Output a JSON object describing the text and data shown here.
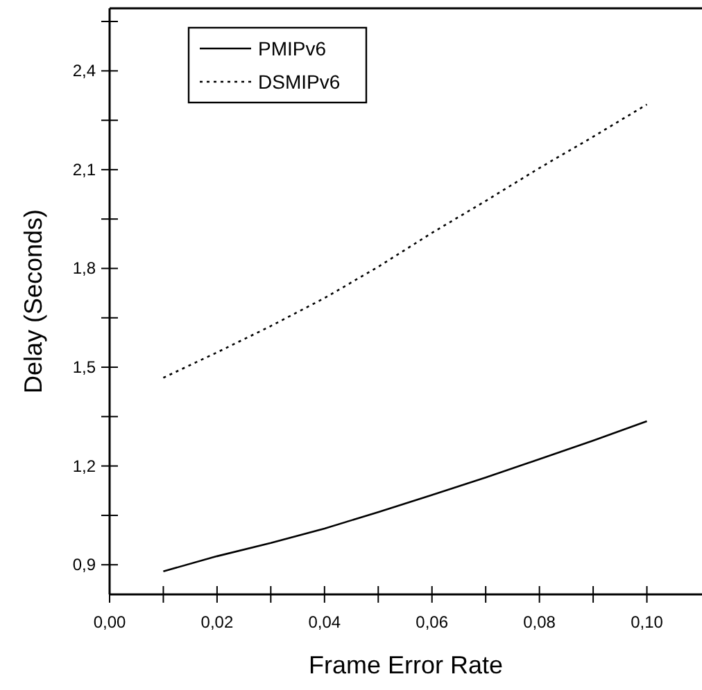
{
  "chart_data": {
    "type": "line",
    "xlabel": "Frame Error Rate",
    "ylabel": "Delay (Seconds)",
    "x": [
      0.01,
      0.02,
      0.03,
      0.04,
      0.05,
      0.06,
      0.07,
      0.08,
      0.09,
      0.1
    ],
    "series": [
      {
        "name": "PMIPv6",
        "color": "#000000",
        "line_style": "solid",
        "values": [
          0.88,
          0.926,
          0.966,
          1.01,
          1.06,
          1.112,
          1.165,
          1.221,
          1.277,
          1.336
        ]
      },
      {
        "name": "DSMIPv6",
        "color": "#000000",
        "line_style": "dotted",
        "values": [
          1.468,
          1.545,
          1.625,
          1.71,
          1.805,
          1.908,
          2.005,
          2.105,
          2.2,
          2.298
        ]
      }
    ],
    "xlim": [
      0,
      0.11
    ],
    "ylim": [
      0.81,
      2.59
    ],
    "xticks": [
      {
        "value": 0,
        "label": "0,00"
      },
      {
        "value": 0.01,
        "label": null
      },
      {
        "value": 0.02,
        "label": "0,02"
      },
      {
        "value": 0.03,
        "label": null
      },
      {
        "value": 0.04,
        "label": "0,04"
      },
      {
        "value": 0.05,
        "label": null
      },
      {
        "value": 0.06,
        "label": "0,06"
      },
      {
        "value": 0.07,
        "label": null
      },
      {
        "value": 0.08,
        "label": "0,08"
      },
      {
        "value": 0.09,
        "label": null
      },
      {
        "value": 0.1,
        "label": "0,10"
      }
    ],
    "yticks": [
      {
        "value": 0.9,
        "label": "0,9"
      },
      {
        "value": 1.05,
        "label": null
      },
      {
        "value": 1.2,
        "label": "1,2"
      },
      {
        "value": 1.35,
        "label": null
      },
      {
        "value": 1.5,
        "label": "1,5"
      },
      {
        "value": 1.65,
        "label": null
      },
      {
        "value": 1.8,
        "label": "1,8"
      },
      {
        "value": 1.95,
        "label": null
      },
      {
        "value": 2.1,
        "label": "2,1"
      },
      {
        "value": 2.25,
        "label": null
      },
      {
        "value": 2.4,
        "label": "2,4"
      },
      {
        "value": 2.55,
        "label": null
      }
    ],
    "grid": false,
    "legend": "top left",
    "marker": "none"
  }
}
